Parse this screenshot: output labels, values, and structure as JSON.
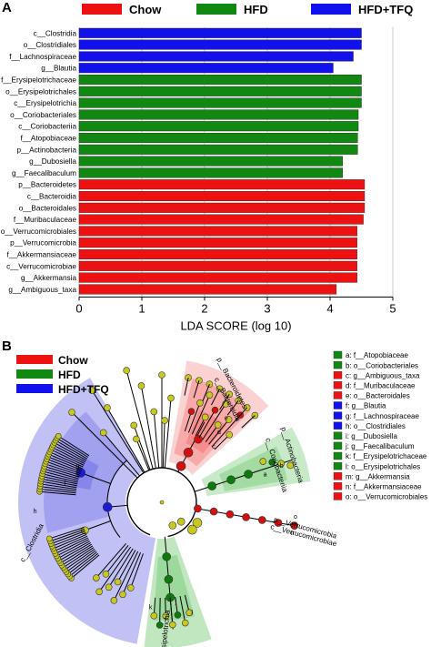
{
  "panel_a": {
    "label": "A"
  },
  "panel_b": {
    "label": "B"
  },
  "legend": [
    {
      "name": "Chow",
      "color": "#ee1111"
    },
    {
      "name": "HFD",
      "color": "#118811"
    },
    {
      "name": "HFD+TFQ",
      "color": "#1111ee"
    }
  ],
  "chart_data": [
    {
      "type": "bar",
      "orientation": "horizontal",
      "xlabel": "LDA SCORE (log 10)",
      "xlim": [
        0,
        5
      ],
      "xticks": [
        "0",
        "1",
        "2",
        "3",
        "4",
        "5"
      ],
      "grid": "vertical",
      "legend_position": "top",
      "bars": [
        {
          "label": "c__Clostridia",
          "value": 4.5,
          "group": "HFD+TFQ"
        },
        {
          "label": "o__Clostridiales",
          "value": 4.5,
          "group": "HFD+TFQ"
        },
        {
          "label": "f__Lachnospiraceae",
          "value": 4.37,
          "group": "HFD+TFQ"
        },
        {
          "label": "g__Blautia",
          "value": 4.05,
          "group": "HFD+TFQ"
        },
        {
          "label": "f__Erysipelotrichaceae",
          "value": 4.5,
          "group": "HFD"
        },
        {
          "label": "o__Erysipelotrichales",
          "value": 4.5,
          "group": "HFD"
        },
        {
          "label": "c__Erysipelotrichia",
          "value": 4.5,
          "group": "HFD"
        },
        {
          "label": "o__Coriobacteriales",
          "value": 4.45,
          "group": "HFD"
        },
        {
          "label": "c__Coriobacteriia",
          "value": 4.45,
          "group": "HFD"
        },
        {
          "label": "f__Atopobiaceae",
          "value": 4.44,
          "group": "HFD"
        },
        {
          "label": "p__Actinobacteria",
          "value": 4.44,
          "group": "HFD"
        },
        {
          "label": "g__Dubosiella",
          "value": 4.2,
          "group": "HFD"
        },
        {
          "label": "g__Faecalibaculum",
          "value": 4.2,
          "group": "HFD"
        },
        {
          "label": "p__Bacteroidetes",
          "value": 4.55,
          "group": "Chow"
        },
        {
          "label": "c__Bacteroidia",
          "value": 4.55,
          "group": "Chow"
        },
        {
          "label": "o__Bacteroidales",
          "value": 4.55,
          "group": "Chow"
        },
        {
          "label": "f__Muribaculaceae",
          "value": 4.53,
          "group": "Chow"
        },
        {
          "label": "o__Verrucomicrobiales",
          "value": 4.43,
          "group": "Chow"
        },
        {
          "label": "p__Verrucomicrobia",
          "value": 4.43,
          "group": "Chow"
        },
        {
          "label": "f__Akkermansiaceae",
          "value": 4.43,
          "group": "Chow"
        },
        {
          "label": "c__Verrucomicrobiae",
          "value": 4.43,
          "group": "Chow"
        },
        {
          "label": "g__Akkermansia",
          "value": 4.43,
          "group": "Chow"
        },
        {
          "label": "g__Ambiguous_taxa",
          "value": 4.1,
          "group": "Chow"
        }
      ]
    },
    {
      "type": "cladogram",
      "legend": [
        {
          "key": "a",
          "taxon": "f__Atopobiaceae",
          "group": "HFD"
        },
        {
          "key": "b",
          "taxon": "o__Coriobacteriales",
          "group": "HFD"
        },
        {
          "key": "c",
          "taxon": "g__Ambiguous_taxa",
          "group": "Chow"
        },
        {
          "key": "d",
          "taxon": "f__Muribaculaceae",
          "group": "Chow"
        },
        {
          "key": "e",
          "taxon": "o__Bacteroidales",
          "group": "Chow"
        },
        {
          "key": "f",
          "taxon": "g__Blautia",
          "group": "HFD+TFQ"
        },
        {
          "key": "g",
          "taxon": "f__Lachnospiraceae",
          "group": "HFD+TFQ"
        },
        {
          "key": "h",
          "taxon": "o__Clostridiales",
          "group": "HFD+TFQ"
        },
        {
          "key": "i",
          "taxon": "g__Dubosiella",
          "group": "HFD"
        },
        {
          "key": "j",
          "taxon": "g__Faecalibaculum",
          "group": "HFD"
        },
        {
          "key": "k",
          "taxon": "f__Erysipelotrichaceae",
          "group": "HFD"
        },
        {
          "key": "l",
          "taxon": "o__Erysipelotrichales",
          "group": "HFD"
        },
        {
          "key": "m",
          "taxon": "g__Akkermansia",
          "group": "Chow"
        },
        {
          "key": "n",
          "taxon": "f__Akkermansiaceae",
          "group": "Chow"
        },
        {
          "key": "o",
          "taxon": "o__Verrucomicrobiales",
          "group": "Chow"
        }
      ],
      "clade_labels": [
        {
          "text": "p__Bacteroidetes",
          "group": "Chow"
        },
        {
          "text": "c__Bacteroidia",
          "group": "Chow"
        },
        {
          "text": "p__Actinobacteria",
          "group": "HFD"
        },
        {
          "text": "c__Coriobacteriia",
          "group": "HFD"
        },
        {
          "text": "p__Verrucomicrobia",
          "group": "Chow"
        },
        {
          "text": "c__Verrucomicrobiae",
          "group": "Chow"
        },
        {
          "text": "c__Clostridia",
          "group": "HFD+TFQ"
        },
        {
          "text": "c__Erysipelotrichia",
          "group": "HFD"
        }
      ]
    }
  ]
}
